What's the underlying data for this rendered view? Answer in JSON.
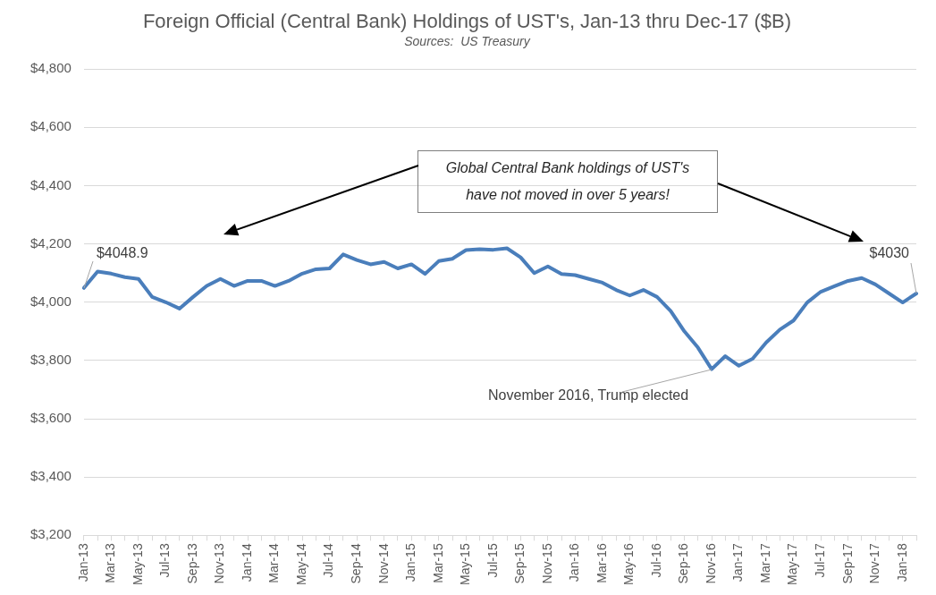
{
  "chart_data": {
    "type": "line",
    "title": "Foreign Official (Central Bank) Holdings of UST's, Jan-13 thru Dec-17 ($B)",
    "subtitle": "Sources:  US Treasury",
    "categories": [
      "Jan-13",
      null,
      "Mar-13",
      null,
      "May-13",
      null,
      "Jul-13",
      null,
      "Sep-13",
      null,
      "Nov-13",
      null,
      "Jan-14",
      null,
      "Mar-14",
      null,
      "May-14",
      null,
      "Jul-14",
      null,
      "Sep-14",
      null,
      "Nov-14",
      null,
      "Jan-15",
      null,
      "Mar-15",
      null,
      "May-15",
      null,
      "Jul-15",
      null,
      "Sep-15",
      null,
      "Nov-15",
      null,
      "Jan-16",
      null,
      "Mar-16",
      null,
      "May-16",
      null,
      "Jul-16",
      null,
      "Sep-16",
      null,
      "Nov-16",
      null,
      "Jan-17",
      null,
      "Mar-17",
      null,
      "May-17",
      null,
      "Jul-17",
      null,
      "Sep-17",
      null,
      "Nov-17",
      null,
      "Jan-18",
      null
    ],
    "series": [
      {
        "color": "#4a7ebb",
        "values": [
          4048.9,
          4105,
          4098,
          4086,
          4080,
          4018,
          4000,
          3978,
          4018,
          4056,
          4080,
          4056,
          4073,
          4073,
          4056,
          4073,
          4098,
          4113,
          4116,
          4164,
          4145,
          4130,
          4138,
          4116,
          4130,
          4097,
          4141,
          4149,
          4179,
          4182,
          4180,
          4185,
          4154,
          4100,
          4123,
          4097,
          4093,
          4080,
          4067,
          4042,
          4023,
          4042,
          4018,
          3970,
          3900,
          3844,
          3770,
          3815,
          3782,
          3806,
          3862,
          3906,
          3937,
          3999,
          4036,
          4055,
          4073,
          4083,
          4061,
          4030,
          3999,
          4030
        ]
      }
    ],
    "ylim": [
      3200,
      4800
    ],
    "yticks": [
      {
        "value": 3200,
        "label": "$3,200"
      },
      {
        "value": 3400,
        "label": "$3,400"
      },
      {
        "value": 3600,
        "label": "$3,600"
      },
      {
        "value": 3800,
        "label": "$3,800"
      },
      {
        "value": 4000,
        "label": "$4,000"
      },
      {
        "value": 4200,
        "label": "$4,200"
      },
      {
        "value": 4400,
        "label": "$4,400"
      },
      {
        "value": 4600,
        "label": "$4,600"
      },
      {
        "value": 4800,
        "label": "$4,800"
      }
    ],
    "grid": "y",
    "legend": false,
    "marker": "none",
    "line_style": "solid",
    "annotations": [
      {
        "text": "$4048.9",
        "x": "Jan-13",
        "y": 4048.9
      },
      {
        "text": "$4030",
        "y": 4030
      },
      {
        "text": "November 2016, Trump elected",
        "x": "Nov-16",
        "y": 3770
      },
      "Global Central Bank holdings of UST's have not moved in over 5 years!"
    ]
  }
}
